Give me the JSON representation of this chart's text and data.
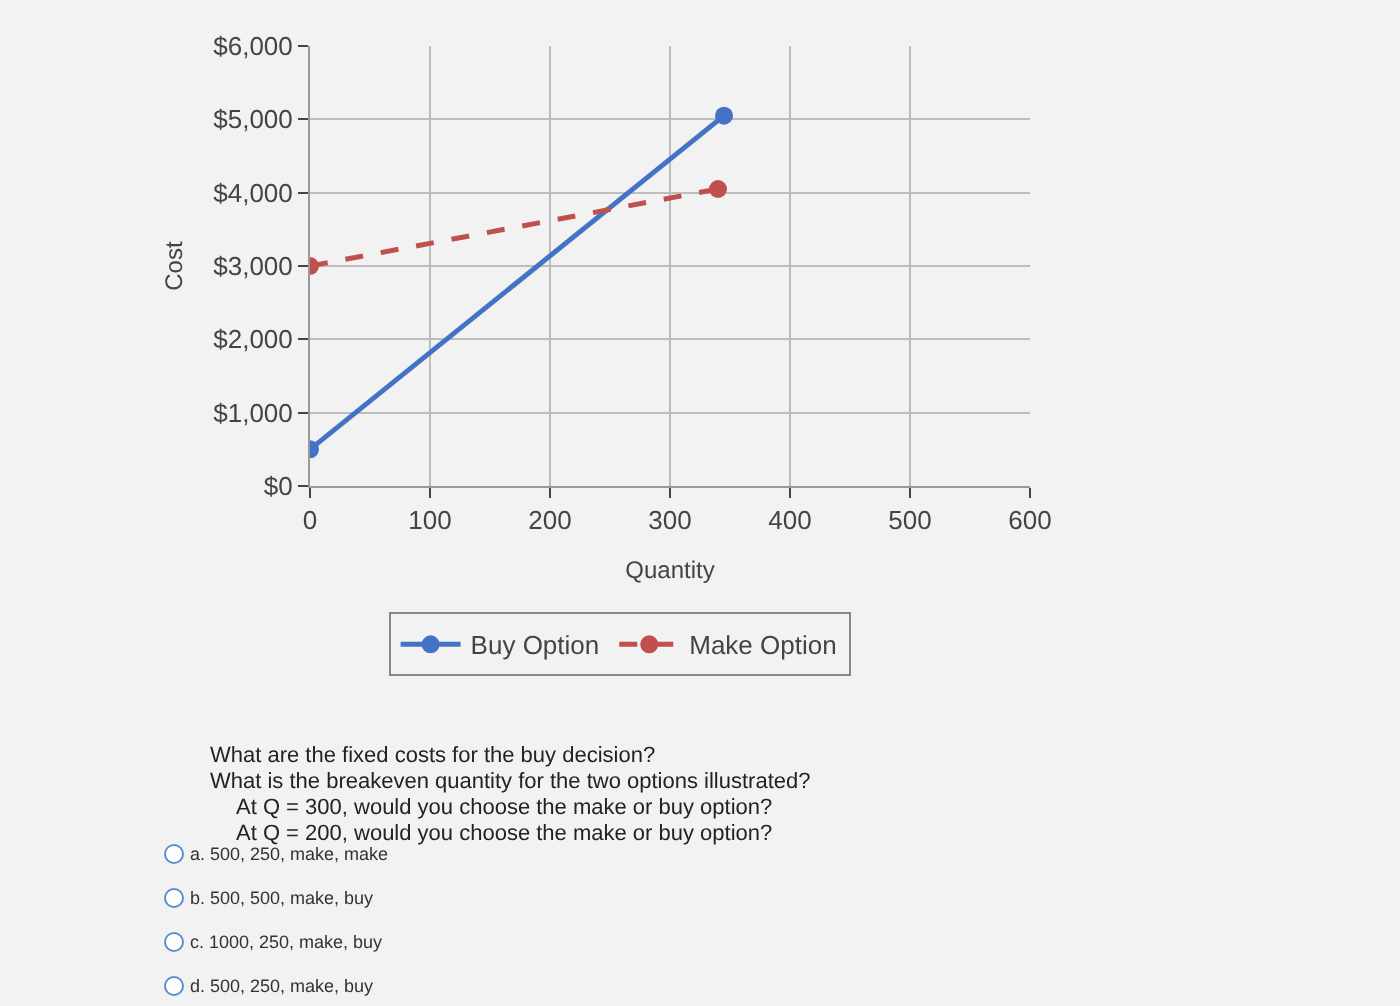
{
  "chart_data": {
    "type": "line",
    "xlabel": "Quantity",
    "ylabel": "Cost",
    "xlim": [
      0,
      600
    ],
    "xticks": [
      0,
      100,
      200,
      300,
      400,
      500,
      600
    ],
    "ylim": [
      0,
      6000
    ],
    "yticks": [
      {
        "value": 0,
        "label": "$0"
      },
      {
        "value": 1000,
        "label": "$1,000"
      },
      {
        "value": 2000,
        "label": "$2,000"
      },
      {
        "value": 3000,
        "label": "$3,000"
      },
      {
        "value": 4000,
        "label": "$4,000"
      },
      {
        "value": 5000,
        "label": "$5,000"
      },
      {
        "value": 6000,
        "label": "$6,000"
      }
    ],
    "grid": true,
    "legend": "bottom",
    "marker": "circle",
    "series": [
      {
        "name": "Buy Option",
        "color": "#4472c4",
        "x": [
          0,
          345
        ],
        "values": [
          500,
          5050
        ],
        "line_style": "solid"
      },
      {
        "name": "Make Option",
        "color": "#c0504d",
        "x": [
          0,
          340
        ],
        "values": [
          3000,
          4050
        ],
        "line_style": "dashed"
      }
    ],
    "annotations": [
      "What are the fixed costs for the buy decision?",
      "What is the breakeven quantity for the two options illustrated?",
      "At Q = 300, would you choose the make or buy option?",
      "At Q = 200, would you choose the make or buy option?",
      "a. 500, 250, make, make",
      "b. 500, 500, make, buy",
      "c. 1000, 250, make, buy",
      "d. 500, 250, make, buy"
    ]
  }
}
